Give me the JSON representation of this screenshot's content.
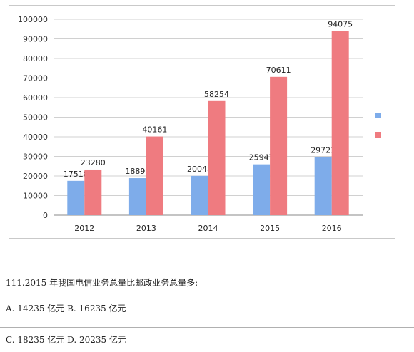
{
  "chart_data": {
    "type": "bar",
    "categories": [
      "2012",
      "2013",
      "2014",
      "2015",
      "2016"
    ],
    "series": [
      {
        "values": [
          17518,
          18891,
          20048,
          25947,
          29721
        ],
        "color": "#7eacea"
      },
      {
        "values": [
          23280,
          40161,
          58254,
          70611,
          94075
        ],
        "color": "#ef7b80"
      }
    ],
    "ylim": [
      0,
      100000
    ],
    "yticks": [
      0,
      10000,
      20000,
      30000,
      40000,
      50000,
      60000,
      70000,
      80000,
      90000,
      100000
    ],
    "grid": true,
    "legend": "right"
  },
  "question": {
    "text": "111.2015 年我国电信业务总量比邮政业务总量多:",
    "option_ab": "A. 14235 亿元 B. 16235 亿元",
    "option_cd": "C. 18235 亿元 D. 20235 亿元"
  }
}
